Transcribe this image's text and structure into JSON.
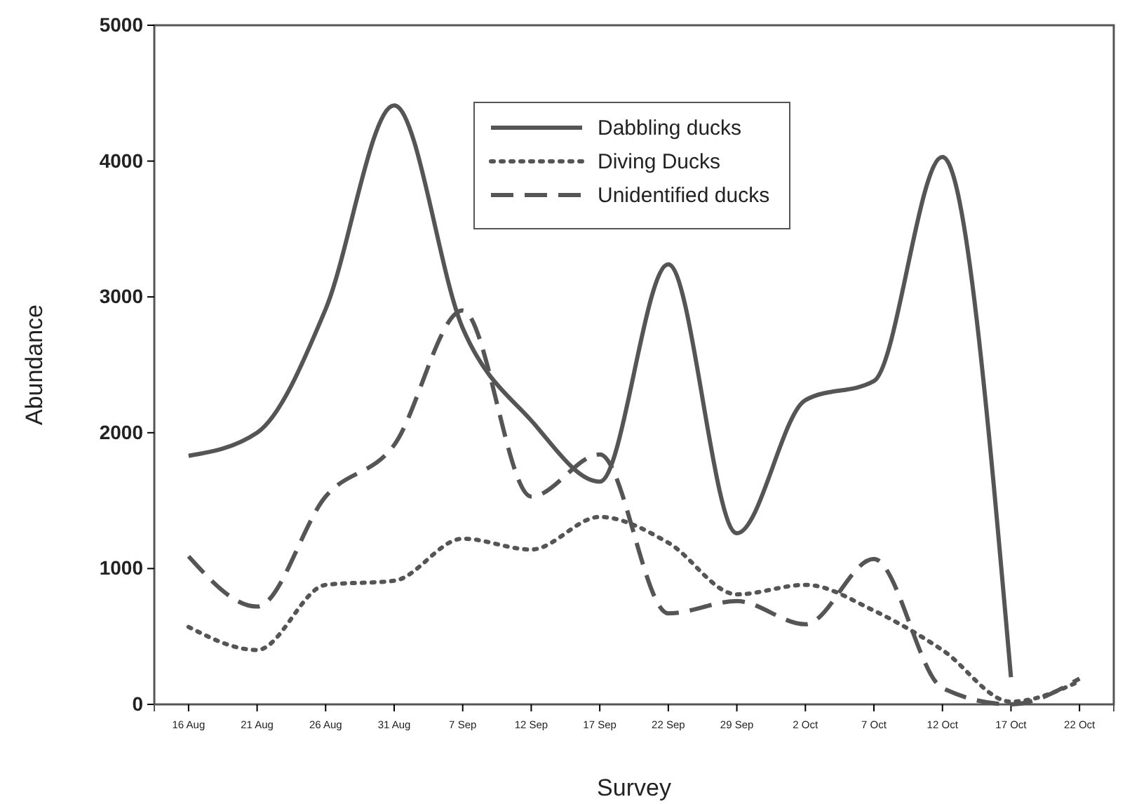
{
  "chart_data": {
    "type": "line",
    "xlabel": "Survey",
    "ylabel": "Abundance",
    "categories": [
      "16 Aug",
      "21 Aug",
      "26 Aug",
      "31 Aug",
      "7 Sep",
      "12 Sep",
      "17 Sep",
      "22 Sep",
      "29 Sep",
      "2 Oct",
      "7 Oct",
      "12 Oct",
      "17 Oct",
      "22 Oct"
    ],
    "series": [
      {
        "name": "Dabbling ducks",
        "color": "#555555",
        "line_style": "solid",
        "values": [
          1830,
          2000,
          2910,
          4410,
          2770,
          2090,
          1640,
          3240,
          1260,
          2240,
          2380,
          4030,
          200,
          null
        ]
      },
      {
        "name": "Diving Ducks",
        "color": "#555555",
        "line_style": "dotted",
        "values": [
          570,
          400,
          880,
          910,
          1220,
          1140,
          1380,
          1190,
          810,
          880,
          690,
          400,
          20,
          170
        ]
      },
      {
        "name": "Unidentified ducks",
        "color": "#555555",
        "line_style": "dashed",
        "values": [
          1090,
          720,
          1530,
          1910,
          2900,
          1530,
          1840,
          670,
          760,
          590,
          1070,
          120,
          0,
          190
        ]
      }
    ],
    "ylim": [
      0,
      5000
    ],
    "yticks": [
      0,
      1000,
      2000,
      3000,
      4000,
      5000
    ],
    "grid": false,
    "legend": "top",
    "marker": "none"
  }
}
